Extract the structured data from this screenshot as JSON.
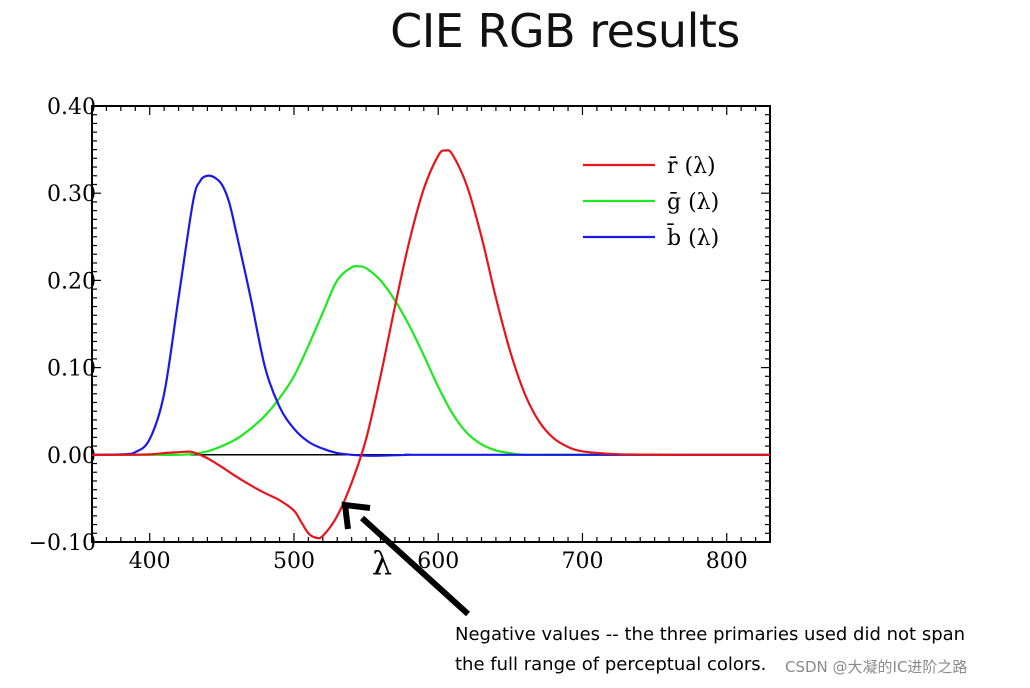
{
  "slide": {
    "title": "CIE RGB results"
  },
  "annotation": {
    "line1": "Negative values -- the three primaries used did not span",
    "line2": "the full range of perceptual colors."
  },
  "watermark": "CSDN @大凝的IC进阶之路",
  "chart_data": {
    "type": "line",
    "title": "CIE RGB results",
    "xlabel": "λ",
    "ylabel": "",
    "xlim": [
      360,
      830
    ],
    "ylim": [
      -0.1,
      0.4
    ],
    "x_ticks": [
      400,
      500,
      600,
      700,
      800
    ],
    "y_ticks": [
      -0.1,
      0.0,
      0.1,
      0.2,
      0.3,
      0.4
    ],
    "x_tick_labels": [
      "400",
      "500",
      "600",
      "700",
      "800"
    ],
    "y_tick_labels": [
      "−0.10",
      "0.00",
      "0.10",
      "0.20",
      "0.30",
      "0.40"
    ],
    "legend_position": "top-right",
    "zero_line": true,
    "series": [
      {
        "name": "r̄ (λ)",
        "color": "#e8141a",
        "x": [
          360,
          380,
          400,
          410,
          420,
          425,
          430,
          440,
          450,
          460,
          470,
          480,
          490,
          500,
          505,
          510,
          515,
          520,
          530,
          540,
          550,
          560,
          570,
          580,
          590,
          600,
          605,
          610,
          620,
          630,
          640,
          650,
          660,
          670,
          680,
          690,
          700,
          720,
          740,
          760,
          800,
          830
        ],
        "y": [
          0.0,
          0.0,
          0.0005,
          0.002,
          0.003,
          0.0035,
          0.003,
          -0.004,
          -0.014,
          -0.025,
          -0.035,
          -0.044,
          -0.052,
          -0.064,
          -0.077,
          -0.09,
          -0.095,
          -0.093,
          -0.07,
          -0.032,
          0.018,
          0.09,
          0.17,
          0.245,
          0.305,
          0.343,
          0.349,
          0.344,
          0.308,
          0.25,
          0.18,
          0.118,
          0.07,
          0.038,
          0.019,
          0.009,
          0.004,
          0.001,
          0.0003,
          0.0,
          0.0,
          0.0
        ]
      },
      {
        "name": "ḡ (λ)",
        "color": "#1ee81e",
        "x": [
          360,
          400,
          420,
          430,
          440,
          450,
          460,
          470,
          480,
          490,
          500,
          510,
          520,
          530,
          540,
          545,
          550,
          560,
          570,
          580,
          590,
          600,
          610,
          620,
          630,
          640,
          650,
          660,
          700,
          830
        ],
        "y": [
          0.0,
          0.0,
          0.0,
          0.001,
          0.004,
          0.01,
          0.018,
          0.03,
          0.045,
          0.065,
          0.09,
          0.125,
          0.163,
          0.2,
          0.215,
          0.216,
          0.214,
          0.2,
          0.177,
          0.148,
          0.114,
          0.078,
          0.047,
          0.025,
          0.012,
          0.005,
          0.002,
          0.0,
          0.0,
          0.0
        ]
      },
      {
        "name": "b̄ (λ)",
        "color": "#1a1ae8",
        "x": [
          360,
          380,
          390,
          400,
          410,
          420,
          430,
          435,
          440,
          445,
          450,
          455,
          460,
          470,
          480,
          490,
          500,
          510,
          520,
          530,
          540,
          550,
          560,
          580,
          600,
          830
        ],
        "y": [
          0.0,
          0.0005,
          0.003,
          0.018,
          0.07,
          0.18,
          0.29,
          0.314,
          0.32,
          0.318,
          0.31,
          0.29,
          0.255,
          0.18,
          0.1,
          0.055,
          0.03,
          0.015,
          0.007,
          0.002,
          0.0,
          -0.001,
          -0.001,
          0.0,
          0.0,
          0.0
        ]
      }
    ]
  }
}
